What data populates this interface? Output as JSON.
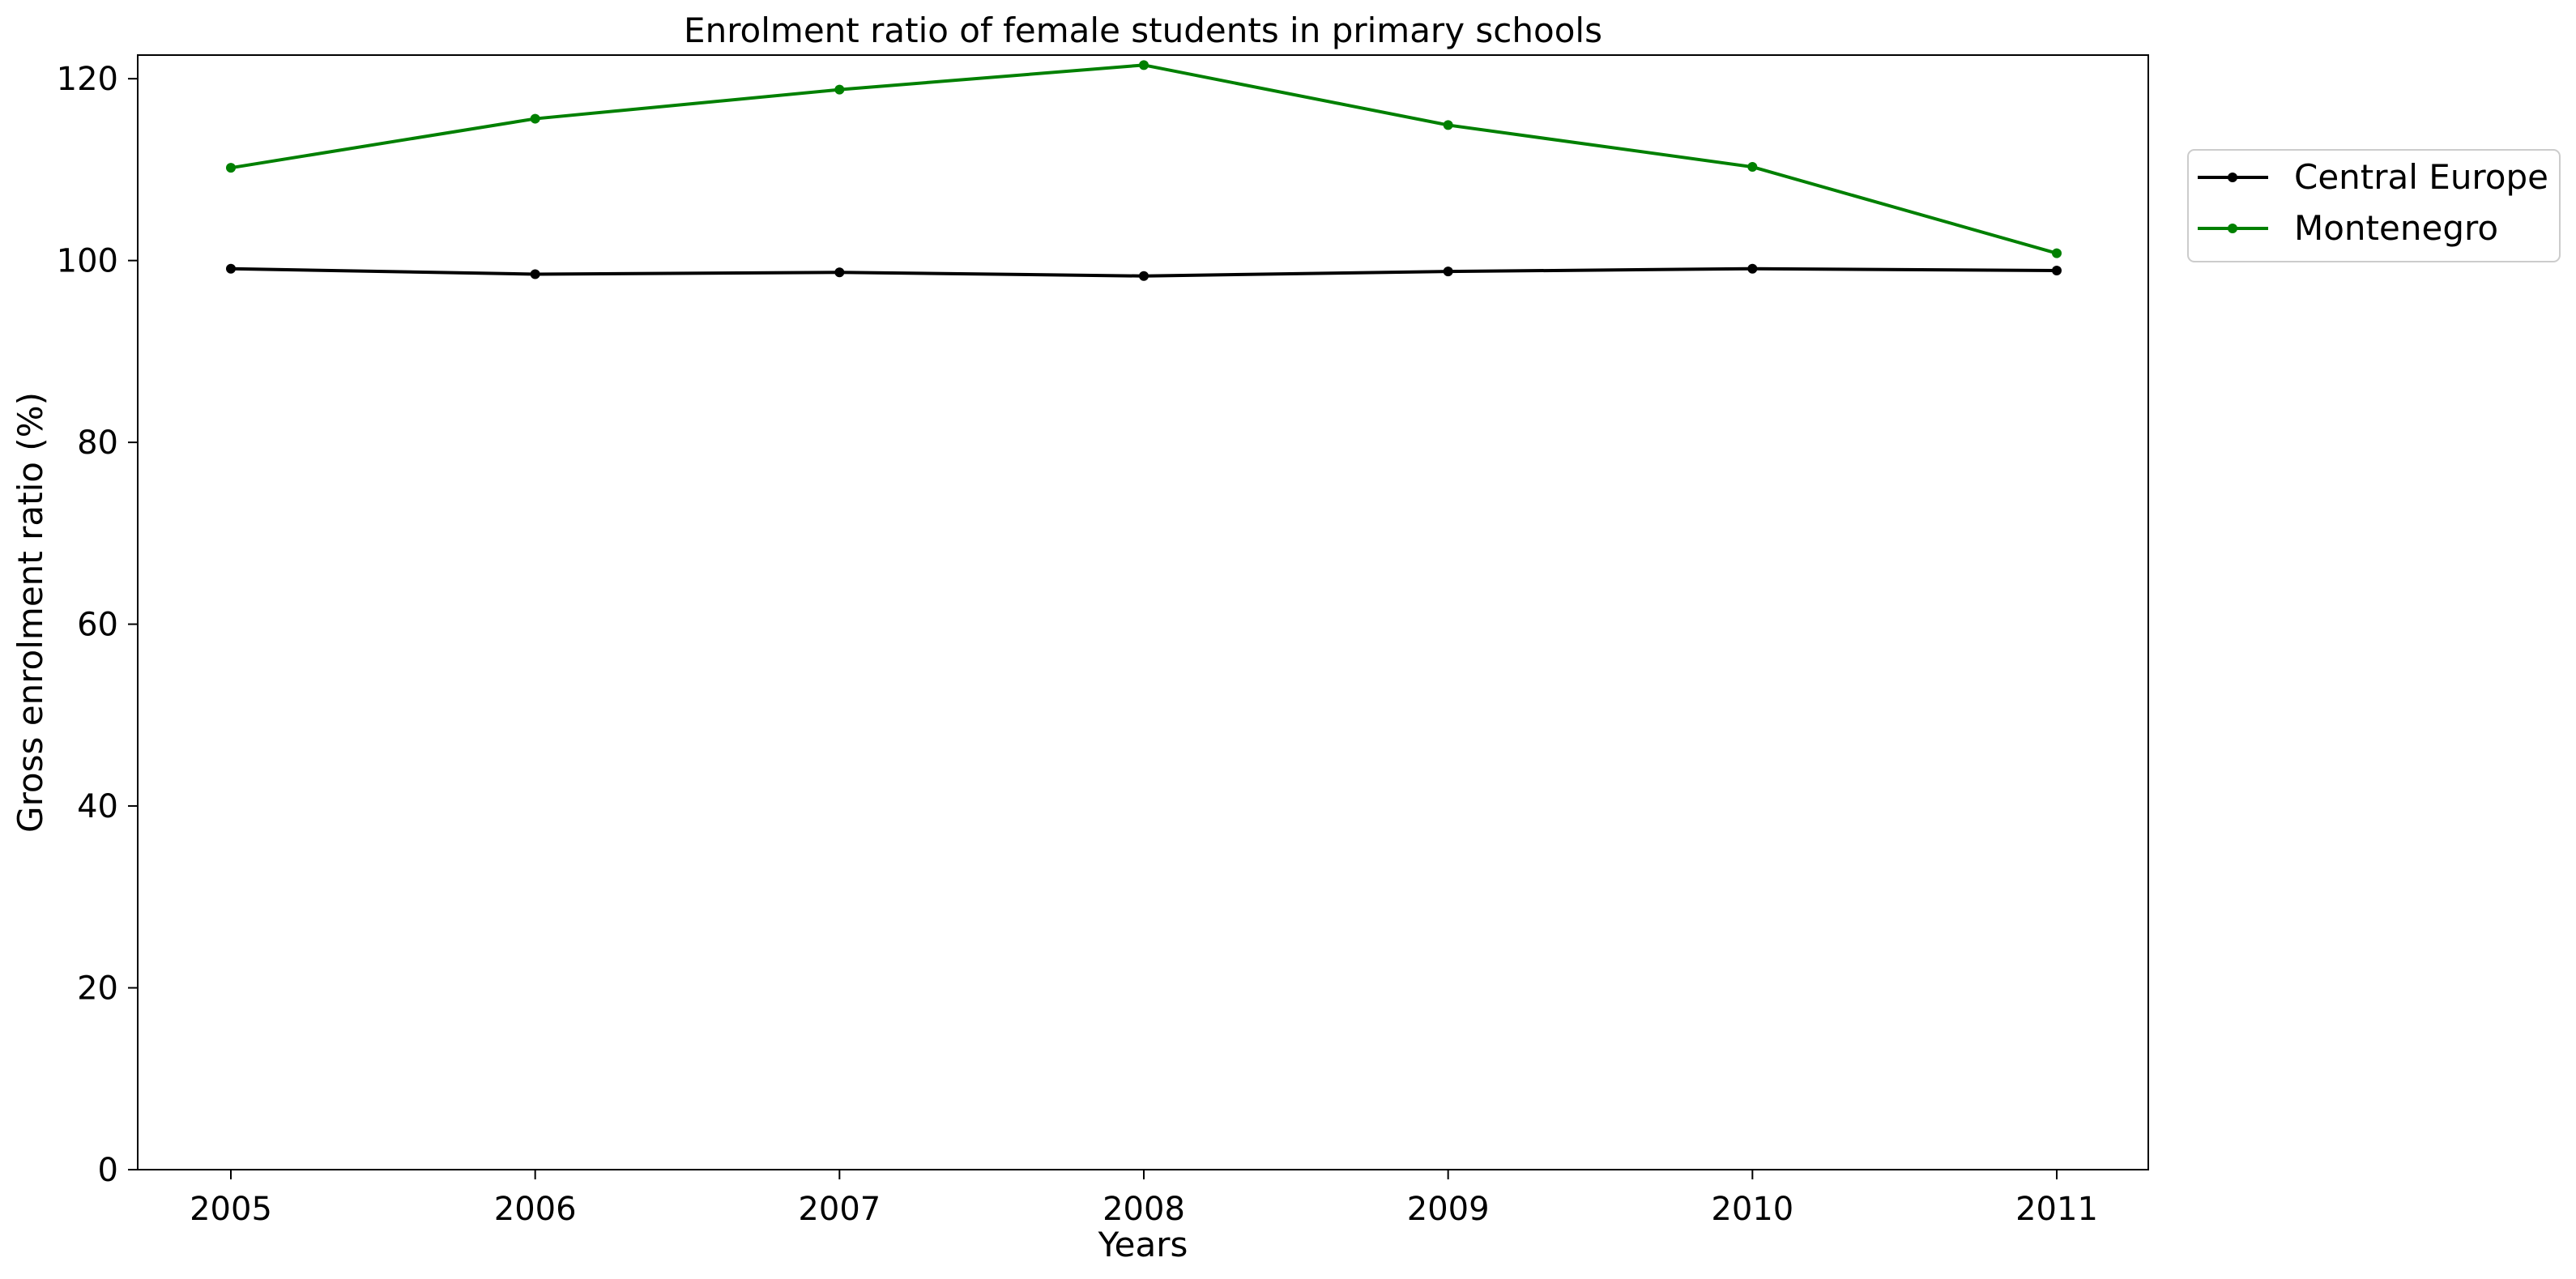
{
  "chart_data": {
    "type": "line",
    "title": "Enrolment ratio of female students in primary schools",
    "xlabel": "Years",
    "ylabel": "Gross enrolment ratio (%)",
    "x": [
      "2005",
      "2006",
      "2007",
      "2008",
      "2009",
      "2010",
      "2011"
    ],
    "ylim": [
      0,
      122.6
    ],
    "yticks": [
      0,
      20,
      40,
      60,
      80,
      100,
      120
    ],
    "grid": false,
    "legend_position": "outside-top-right",
    "series": [
      {
        "name": "Central Europe",
        "color": "#000000",
        "values": [
          99.1,
          98.5,
          98.7,
          98.3,
          98.8,
          99.1,
          98.9
        ]
      },
      {
        "name": "Montenegro",
        "color": "#008000",
        "values": [
          110.2,
          115.6,
          118.8,
          121.5,
          114.9,
          110.3,
          100.8
        ]
      }
    ]
  }
}
